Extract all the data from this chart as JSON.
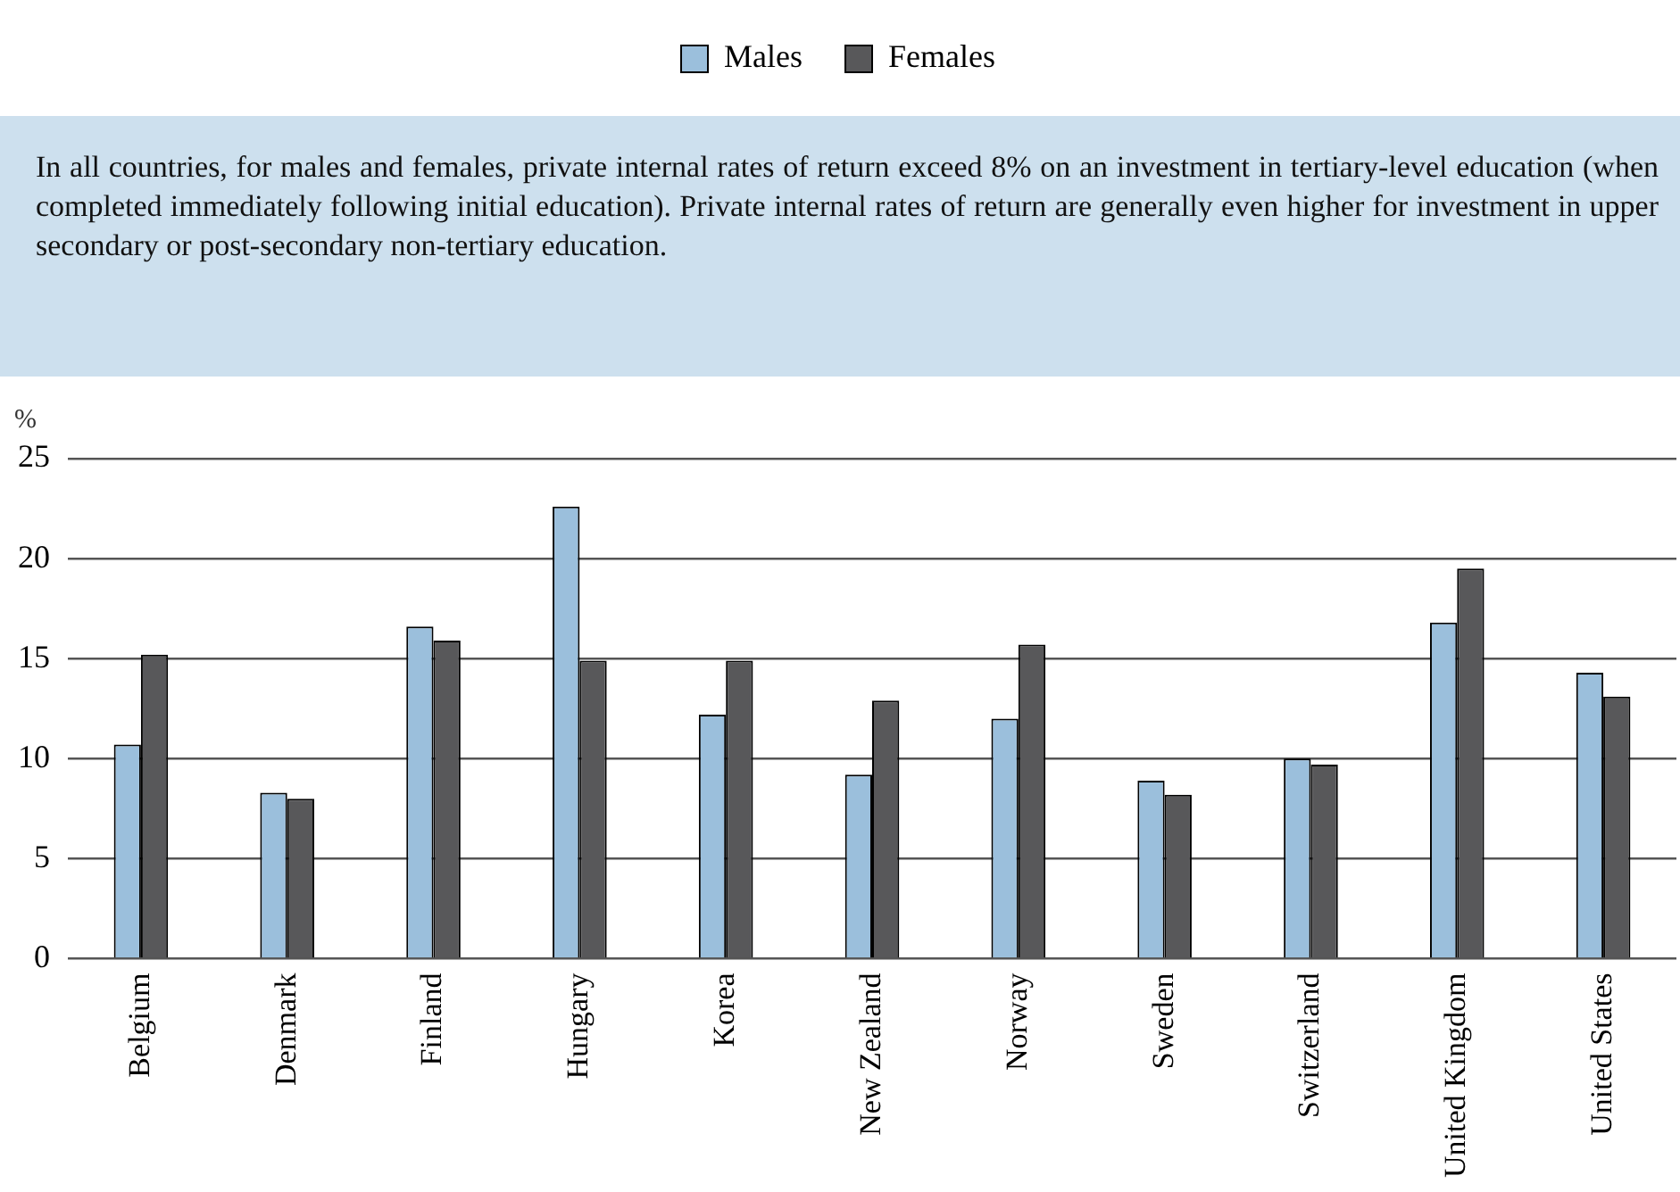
{
  "chart_data": {
    "type": "bar",
    "ylabel": "%",
    "annotations": [
      "In all countries, for males and females, private internal rates of return exceed 8% on an investment in tertiary-level education (when completed immediately following initial education). Private internal rates of return are generally even higher for investment in upper secondary or post-secondary non-tertiary education."
    ],
    "categories": [
      "Belgium",
      "Denmark",
      "Finland",
      "Hungary",
      "Korea",
      "New Zealand",
      "Norway",
      "Sweden",
      "Switzerland",
      "United Kingdom",
      "United States"
    ],
    "series": [
      {
        "name": "Males",
        "color": "#9bbfdc",
        "values": [
          10.7,
          8.3,
          16.6,
          22.6,
          12.2,
          9.2,
          12.0,
          8.9,
          10.0,
          16.8,
          14.3
        ]
      },
      {
        "name": "Females",
        "color": "#58585a",
        "values": [
          15.2,
          8.0,
          15.9,
          14.9,
          14.9,
          12.9,
          15.7,
          8.2,
          9.7,
          19.5,
          13.1
        ]
      }
    ],
    "ylim": [
      0,
      25
    ],
    "yticks": [
      0,
      5,
      10,
      15,
      20,
      25
    ],
    "grid": "y",
    "legend": "top"
  }
}
